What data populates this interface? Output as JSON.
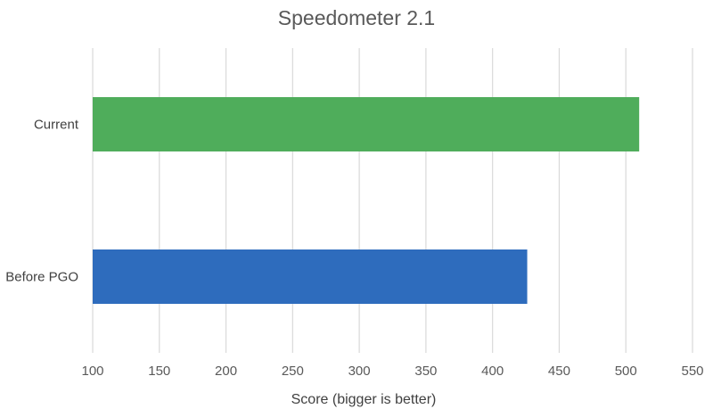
{
  "chart_data": {
    "type": "bar",
    "orientation": "horizontal",
    "title": "Speedometer 2.1",
    "xlabel": "Score (bigger is better)",
    "ylabel": "",
    "categories": [
      "Current",
      "Before PGO"
    ],
    "values": [
      510,
      426
    ],
    "bar_colors": [
      "#4fad5b",
      "#2e6cbd"
    ],
    "xlim": [
      100,
      550
    ],
    "xticks": [
      100,
      150,
      200,
      250,
      300,
      350,
      400,
      450,
      500,
      550
    ],
    "grid": true,
    "legend": "none"
  }
}
